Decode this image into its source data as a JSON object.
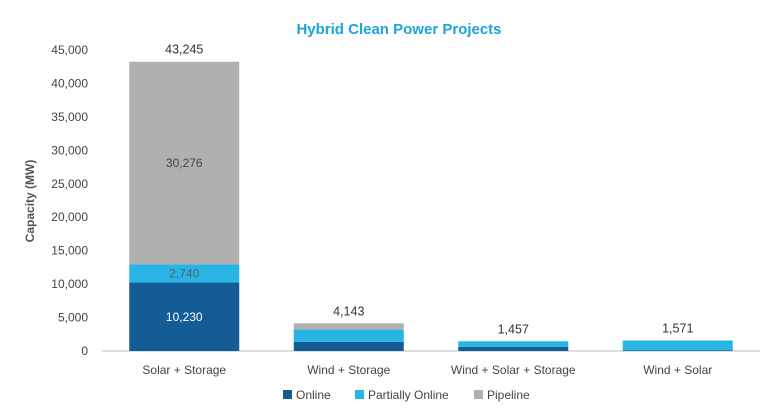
{
  "chart_data": {
    "type": "bar",
    "stacked": true,
    "title": "Hybrid Clean Power Projects",
    "ylabel": "Capacity (MW)",
    "xlabel": "",
    "ylim": [
      0,
      45000
    ],
    "yticks": [
      0,
      5000,
      10000,
      15000,
      20000,
      25000,
      30000,
      35000,
      40000,
      45000
    ],
    "ytick_labels": [
      "0",
      "5,000",
      "10,000",
      "15,000",
      "20,000",
      "25,000",
      "30,000",
      "35,000",
      "40,000",
      "45,000"
    ],
    "grid": false,
    "legend_position": "bottom",
    "categories": [
      "Solar + Storage",
      "Wind + Storage",
      "Wind + Solar + Storage",
      "Wind + Solar"
    ],
    "series": [
      {
        "name": "Online",
        "color": "#135c96",
        "values": [
          10230,
          1380,
          620,
          120
        ],
        "labels": [
          "10,230",
          null,
          null,
          null
        ]
      },
      {
        "name": "Partially Online",
        "color": "#29b4e6",
        "values": [
          2740,
          1820,
          837,
          1451
        ],
        "labels": [
          "2,740",
          null,
          null,
          null
        ]
      },
      {
        "name": "Pipeline",
        "color": "#b0b0b0",
        "values": [
          30276,
          943,
          0,
          0
        ],
        "labels": [
          "30,276",
          null,
          null,
          null
        ]
      }
    ],
    "totals": [
      "43,245",
      "4,143",
      "1,457",
      "1,571"
    ],
    "colors": {
      "title": "#1aa3dc",
      "axis": "#bbbbbb"
    }
  }
}
